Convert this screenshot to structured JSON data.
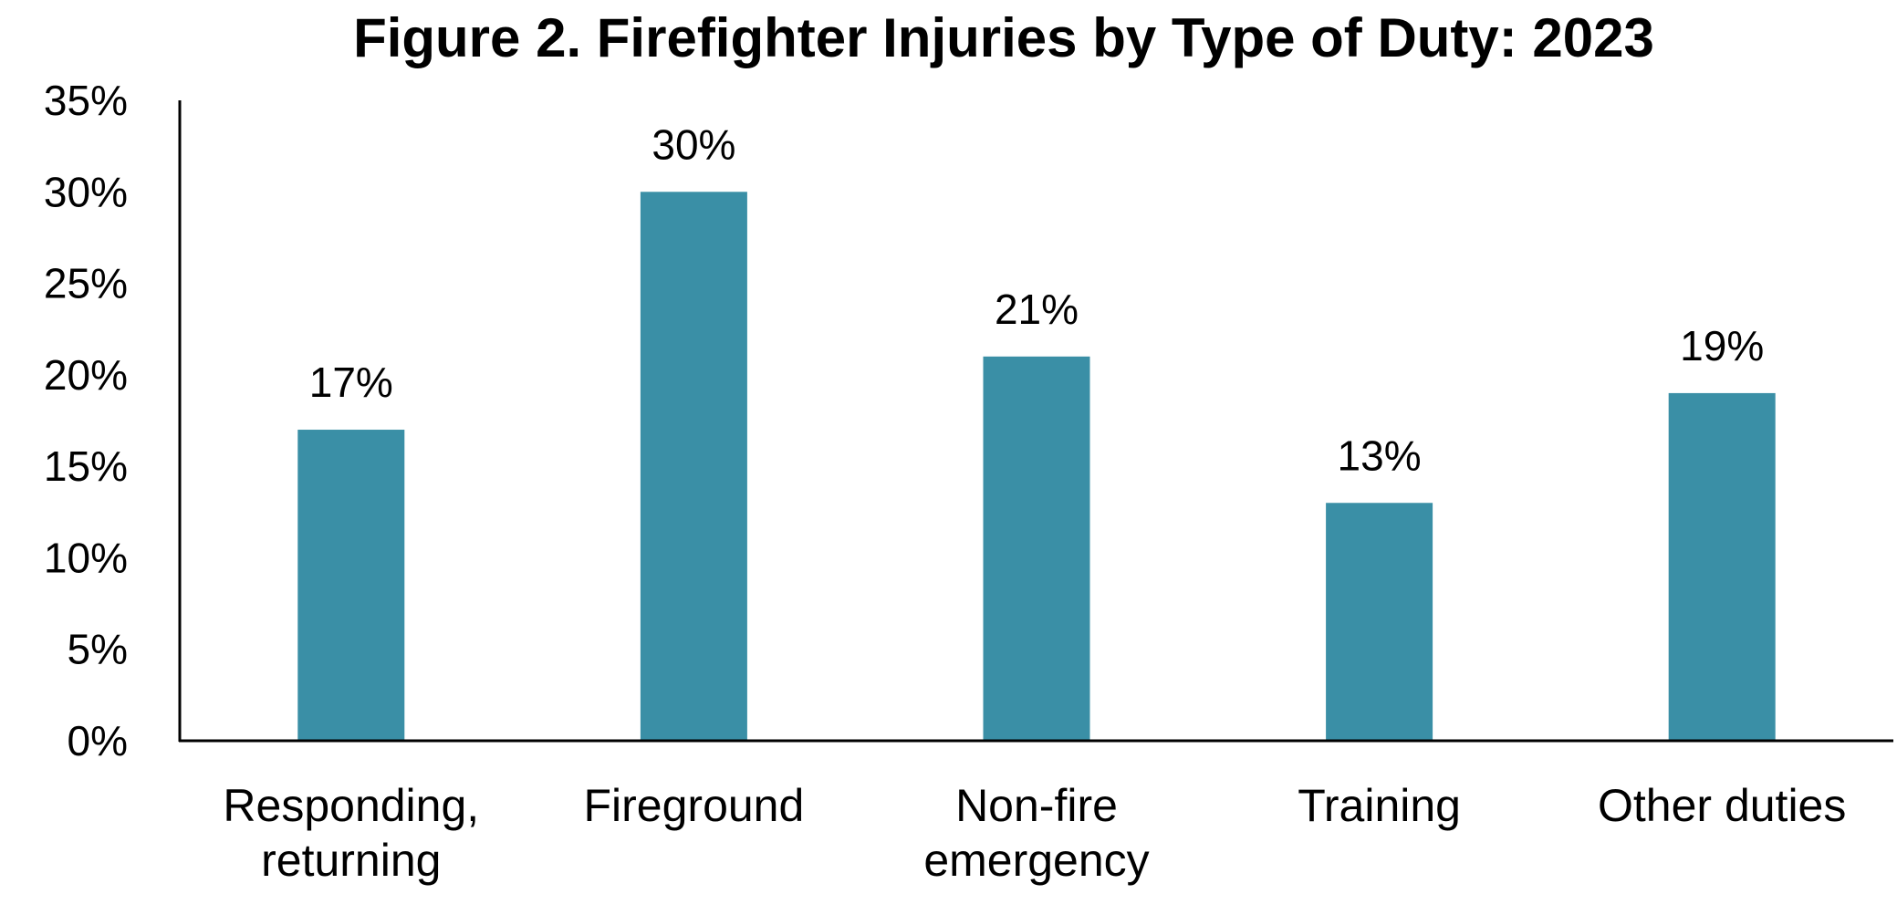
{
  "chart_data": {
    "type": "bar",
    "title": "Figure 2. Firefighter Injuries by Type of Duty: 2023",
    "xlabel": "",
    "ylabel": "",
    "categories": [
      [
        "Responding,",
        "returning"
      ],
      [
        "Fireground"
      ],
      [
        "Non-fire",
        "emergency"
      ],
      [
        "Training"
      ],
      [
        "Other duties"
      ]
    ],
    "values": [
      17,
      30,
      21,
      13,
      19
    ],
    "data_labels": [
      "17%",
      "30%",
      "21%",
      "13%",
      "19%"
    ],
    "ylim": [
      0,
      35
    ],
    "yticks": [
      0,
      5,
      10,
      15,
      20,
      25,
      30,
      35
    ],
    "ytick_labels": [
      "0%",
      "5%",
      "10%",
      "15%",
      "20%",
      "25%",
      "30%",
      "35%"
    ],
    "grid": false,
    "legend": "none",
    "bar_color": "#3a8fa6",
    "axis_color": "#000000"
  }
}
